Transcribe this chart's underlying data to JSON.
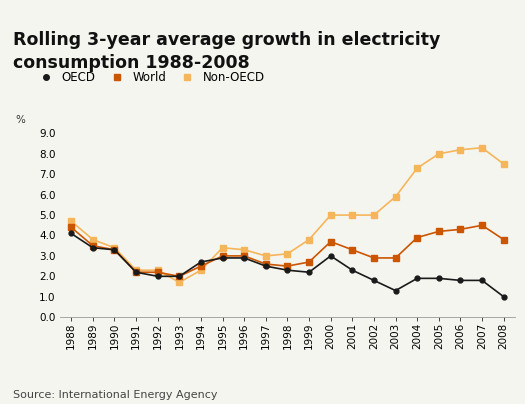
{
  "title_line1": "Rolling 3-year average growth in electricity",
  "title_line2": "consumption 1988-2008",
  "source": "Source: International Energy Agency",
  "ylabel": "%",
  "years": [
    1988,
    1989,
    1990,
    1991,
    1992,
    1993,
    1994,
    1995,
    1996,
    1997,
    1998,
    1999,
    2000,
    2001,
    2002,
    2003,
    2004,
    2005,
    2006,
    2007,
    2008
  ],
  "oecd": [
    4.1,
    3.4,
    3.3,
    2.2,
    2.0,
    2.0,
    2.7,
    2.9,
    2.9,
    2.5,
    2.3,
    2.2,
    3.0,
    2.3,
    1.8,
    1.3,
    1.9,
    1.9,
    1.8,
    1.8,
    1.0
  ],
  "world": [
    4.4,
    3.5,
    3.3,
    2.2,
    2.2,
    2.0,
    2.5,
    3.0,
    3.0,
    2.6,
    2.5,
    2.7,
    3.7,
    3.3,
    2.9,
    2.9,
    3.9,
    4.2,
    4.3,
    4.5,
    3.8
  ],
  "non_oecd": [
    4.7,
    3.8,
    3.4,
    2.3,
    2.3,
    1.7,
    2.3,
    3.4,
    3.3,
    3.0,
    3.1,
    3.8,
    5.0,
    5.0,
    5.0,
    5.9,
    7.3,
    8.0,
    8.2,
    8.3,
    7.5
  ],
  "oecd_color": "#1a1a1a",
  "world_color": "#cc5500",
  "non_oecd_color": "#f5b55a",
  "title_bg_color": "#dcdcdc",
  "fig_bg_color": "#f5f5f0",
  "plot_bg_color": "#f5f5f0",
  "ylim": [
    0.0,
    9.5
  ],
  "yticks": [
    0.0,
    1.0,
    2.0,
    3.0,
    4.0,
    5.0,
    6.0,
    7.0,
    8.0,
    9.0
  ],
  "title_fontsize": 12.5,
  "legend_fontsize": 8.5,
  "axis_fontsize": 7.5,
  "source_fontsize": 8
}
